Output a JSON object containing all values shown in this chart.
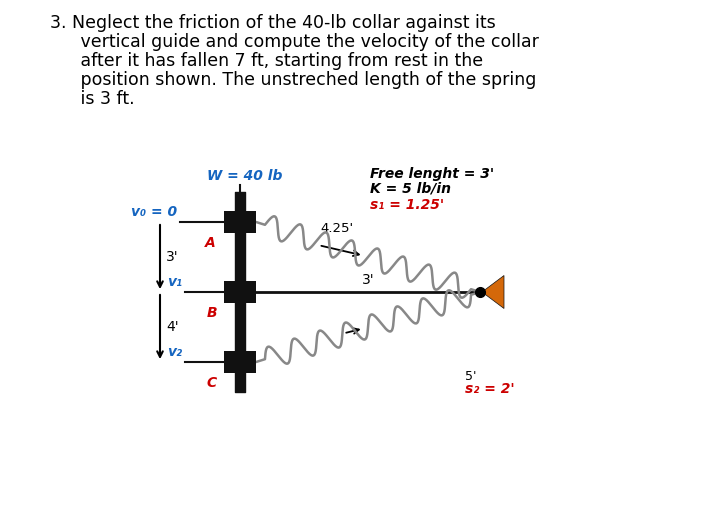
{
  "bg_color": "#ffffff",
  "fig_width": 7.18,
  "fig_height": 5.07,
  "dpi": 100,
  "label_W": "W = 40 lb",
  "label_free": "Free lenght = 3'",
  "label_K": "K = 5 lb/in",
  "label_s1": "s₁ = 1.25'",
  "label_4p25": "4.25'",
  "label_3prime_horiz": "3'",
  "label_s2": "s₂ = 2'",
  "label_5prime": "5'",
  "label_v0": "v₀ = 0",
  "label_A": "A",
  "label_v1": "v₁",
  "label_B": "B",
  "label_v2": "v₂",
  "label_C": "C",
  "label_3ft_dist": "3'",
  "label_4ft_dist": "4'",
  "color_blue": "#1565C0",
  "color_red": "#CC0000",
  "color_black": "#000000",
  "color_orange": "#D4680A",
  "color_dark": "#111111",
  "color_spring": "#888888",
  "title_line1": "3. Neglect the friction of the 40-lb collar against its",
  "title_line2": "   vertical guide and compute the velocity of the collar",
  "title_line3": "   after it has fallen 7 ft, starting from rest in the",
  "title_line4": "   position shown. The unstreched length of the spring",
  "title_line5": "   is 3 ft.",
  "title_fontsize": 12.5
}
